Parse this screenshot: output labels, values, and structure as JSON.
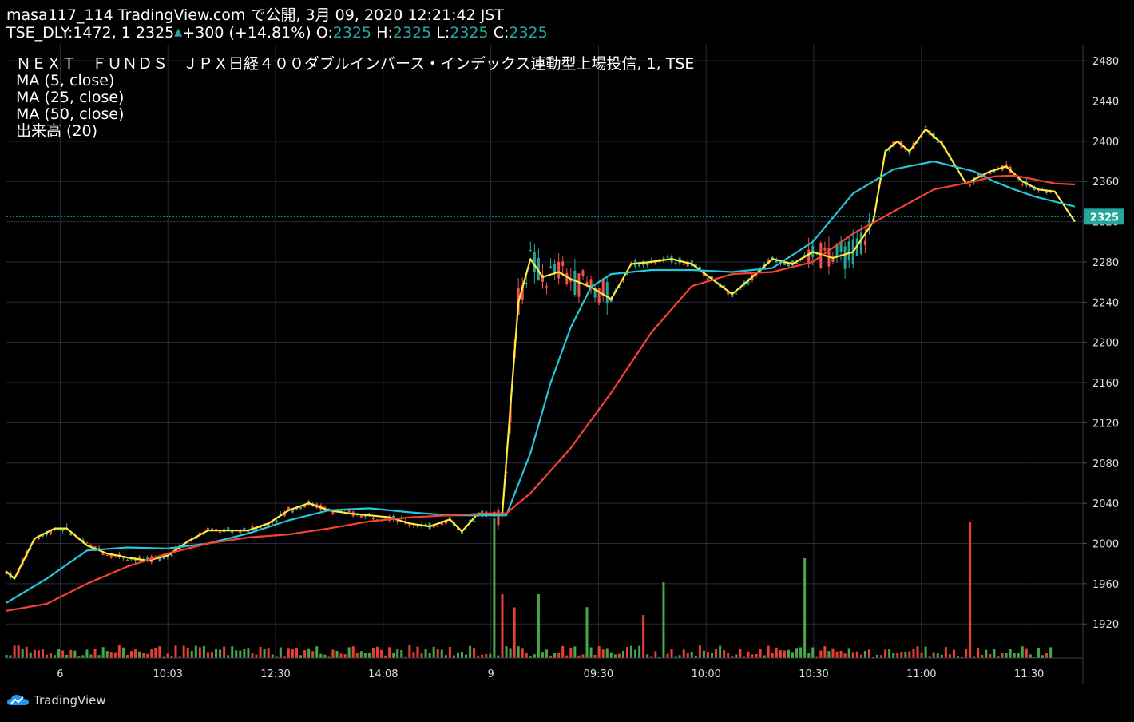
{
  "header": {
    "publish_line": "masa117_114 TradingView.com で公開, 3月 09, 2020 12:21:42 JST",
    "symbol": "TSE_DLY:1472, 1",
    "last": "2325",
    "change": "+300 (+14.81%)",
    "o_label": "O:",
    "o_value": "2325",
    "h_label": "H:",
    "h_value": "2325",
    "l_label": "L:",
    "l_value": "2325",
    "c_label": "C:",
    "c_value": "2325"
  },
  "legend": {
    "title": "ＮＥＸＴ　ＦＵＮＤＳ　ＪＰＸ日経４００ダブルインバース・インデックス連動型上場投信, 1, TSE",
    "ma5": "MA (5, close)",
    "ma25": "MA (25, close)",
    "ma50": "MA (50, close)",
    "volume": "出来高 (20)"
  },
  "footer": {
    "logo_text": "TradingView"
  },
  "colors": {
    "background": "#000000",
    "grid": "#2a2a3a",
    "up": "#26a69a",
    "down": "#ef5350",
    "ma5": "#ffeb3b",
    "ma25": "#26c6da",
    "ma50": "#f44336",
    "vol_up": "#4caf50",
    "vol_down": "#f44336"
  },
  "chart_data": {
    "type": "line",
    "title": "ＮＥＸＴ　ＦＵＮＤＳ　ＪＰＸ日経４００ダブルインバース・インデックス連動型上場投信, 1, TSE",
    "x_ticks": [
      "6",
      "10:03",
      "12:30",
      "14:08",
      "9",
      "09:30",
      "10:00",
      "10:30",
      "11:00",
      "11:30"
    ],
    "y_ticks": [
      1920,
      1960,
      2000,
      2040,
      2080,
      2120,
      2160,
      2200,
      2240,
      2280,
      2320,
      2360,
      2400,
      2440,
      2480
    ],
    "ylim": [
      1886,
      2496
    ],
    "last_price": 2325,
    "x_range": [
      0,
      267
    ],
    "series": [
      {
        "name": "MA (5, close)",
        "x": [
          0,
          2,
          7,
          12,
          15,
          20,
          25,
          30,
          35,
          40,
          45,
          50,
          55,
          60,
          65,
          70,
          75,
          80,
          85,
          90,
          95,
          100,
          105,
          110,
          113,
          117,
          120,
          123,
          127,
          130,
          133,
          137,
          140,
          145,
          150,
          155,
          160,
          165,
          170,
          175,
          180,
          185,
          190,
          195,
          200,
          205,
          210,
          215,
          218,
          221,
          224,
          228,
          232,
          238,
          244,
          248,
          252,
          256,
          260,
          265
        ],
        "values": [
          1972,
          1965,
          2005,
          2015,
          2015,
          1998,
          1990,
          1986,
          1983,
          1988,
          2002,
          2013,
          2013,
          2013,
          2020,
          2033,
          2040,
          2033,
          2030,
          2028,
          2026,
          2020,
          2017,
          2024,
          2012,
          2030,
          2029,
          2030,
          2240,
          2283,
          2265,
          2270,
          2263,
          2255,
          2243,
          2278,
          2280,
          2283,
          2278,
          2263,
          2248,
          2265,
          2283,
          2278,
          2290,
          2284,
          2290,
          2320,
          2390,
          2400,
          2390,
          2412,
          2398,
          2358,
          2370,
          2375,
          2360,
          2352,
          2350,
          2320
        ]
      },
      {
        "name": "MA (25, close)",
        "x": [
          0,
          10,
          20,
          30,
          40,
          50,
          60,
          70,
          80,
          90,
          100,
          110,
          120,
          124,
          130,
          135,
          140,
          145,
          150,
          160,
          170,
          180,
          190,
          200,
          210,
          220,
          230,
          240,
          245,
          250,
          255,
          260,
          265
        ],
        "values": [
          1941,
          1965,
          1993,
          1996,
          1995,
          2000,
          2010,
          2023,
          2033,
          2035,
          2031,
          2028,
          2028,
          2028,
          2090,
          2160,
          2215,
          2255,
          2268,
          2272,
          2272,
          2270,
          2274,
          2300,
          2348,
          2372,
          2380,
          2370,
          2360,
          2352,
          2345,
          2340,
          2335
        ]
      },
      {
        "name": "MA (50, close)",
        "x": [
          0,
          10,
          20,
          30,
          40,
          50,
          60,
          70,
          80,
          90,
          100,
          110,
          120,
          124,
          130,
          140,
          150,
          160,
          170,
          180,
          190,
          200,
          210,
          220,
          230,
          240,
          245,
          250,
          255,
          260,
          265
        ],
        "values": [
          1933,
          1940,
          1960,
          1977,
          1990,
          2000,
          2006,
          2009,
          2015,
          2022,
          2026,
          2028,
          2030,
          2030,
          2050,
          2095,
          2150,
          2210,
          2256,
          2268,
          2270,
          2280,
          2308,
          2330,
          2352,
          2360,
          2365,
          2366,
          2362,
          2358,
          2357
        ]
      }
    ]
  }
}
